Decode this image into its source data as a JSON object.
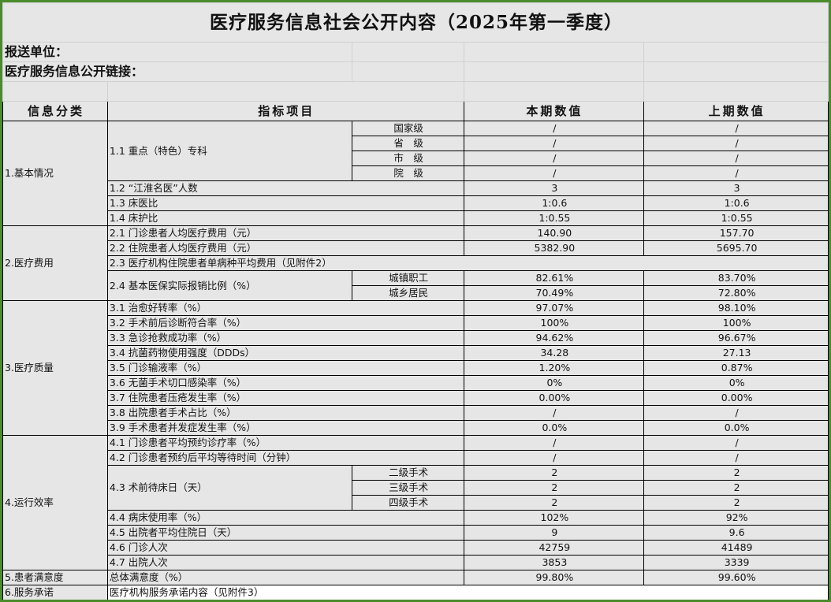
{
  "title": "医疗服务信息社会公开内容（2025年第一季度）",
  "meta": {
    "unit_label": "报送单位：",
    "link_label": "医疗服务信息公开链接："
  },
  "header": {
    "category": "信息分类",
    "item": "指标项目",
    "current": "本期数值",
    "previous": "上期数值"
  },
  "sections": [
    {
      "category": "1.基本情况",
      "rows": [
        {
          "item": "1.1 重点（特色）专科",
          "subs": [
            {
              "label": "国家级",
              "current": "/",
              "previous": "/"
            },
            {
              "label": "省　级",
              "current": "/",
              "previous": "/"
            },
            {
              "label": "市　级",
              "current": "/",
              "previous": "/"
            },
            {
              "label": "院　级",
              "current": "/",
              "previous": "/"
            }
          ]
        },
        {
          "item": "1.2 “江淮名医”人数",
          "current": "3",
          "previous": "3"
        },
        {
          "item": "1.3 床医比",
          "current": "1:0.6",
          "previous": "1:0.6"
        },
        {
          "item": "1.4 床护比",
          "current": "1:0.55",
          "previous": "1:0.55"
        }
      ]
    },
    {
      "category": "2.医疗费用",
      "rows": [
        {
          "item": "2.1 门诊患者人均医疗费用（元）",
          "current": "140.90",
          "previous": "157.70"
        },
        {
          "item": "2.2 住院患者人均医疗费用（元）",
          "current": "5382.90",
          "previous": "5695.70"
        },
        {
          "item": "2.3 医疗机构住院患者单病种平均费用（见附件2）",
          "span": true
        },
        {
          "item": "2.4 基本医保实际报销比例（%）",
          "subs": [
            {
              "label": "城镇职工",
              "current": "82.61%",
              "previous": "83.70%"
            },
            {
              "label": "城乡居民",
              "current": "70.49%",
              "previous": "72.80%"
            }
          ]
        }
      ]
    },
    {
      "category": "3.医疗质量",
      "rows": [
        {
          "item": "3.1 治愈好转率（%）",
          "current": "97.07%",
          "previous": "98.10%"
        },
        {
          "item": "3.2 手术前后诊断符合率（%）",
          "current": "100%",
          "previous": "100%"
        },
        {
          "item": "3.3 急诊抢救成功率（%）",
          "current": "94.62%",
          "previous": "96.67%"
        },
        {
          "item": "3.4 抗菌药物使用强度（DDDs）",
          "current": "34.28",
          "previous": "27.13"
        },
        {
          "item": "3.5 门诊输液率（%）",
          "current": "1.20%",
          "previous": "0.87%"
        },
        {
          "item": "3.6 无菌手术切口感染率（%）",
          "current": "0%",
          "previous": "0%"
        },
        {
          "item": "3.7 住院患者压疮发生率（%）",
          "current": "0.00%",
          "previous": "0.00%"
        },
        {
          "item": "3.8 出院患者手术占比（%）",
          "current": "/",
          "previous": "/"
        },
        {
          "item": "3.9 手术患者并发症发生率（%）",
          "current": "0.0%",
          "previous": "0.0%"
        }
      ]
    },
    {
      "category": "4.运行效率",
      "rows": [
        {
          "item": "4.1 门诊患者平均预约诊疗率（%）",
          "current": "/",
          "previous": "/"
        },
        {
          "item": "4.2 门诊患者预约后平均等待时间（分钟）",
          "current": "/",
          "previous": "/"
        },
        {
          "item": "4.3 术前待床日（天）",
          "subs": [
            {
              "label": "二级手术",
              "current": "2",
              "previous": "2"
            },
            {
              "label": "三级手术",
              "current": "2",
              "previous": "2"
            },
            {
              "label": "四级手术",
              "current": "2",
              "previous": "2"
            }
          ]
        },
        {
          "item": "4.4 病床使用率（%）",
          "current": "102%",
          "previous": "92%"
        },
        {
          "item": "4.5 出院者平均住院日（天）",
          "current": "9",
          "previous": "9.6"
        },
        {
          "item": "4.6 门诊人次",
          "current": "42759",
          "previous": "41489"
        },
        {
          "item": "4.7 出院人次",
          "current": "3853",
          "previous": "3339"
        }
      ]
    },
    {
      "category": "5.患者满意度",
      "rows": [
        {
          "item": "总体满意度（%）",
          "current": "99.80%",
          "previous": "99.60%"
        }
      ]
    },
    {
      "category": "6.服务承诺",
      "rows": [
        {
          "item": "医疗机构服务承诺内容（见附件3）",
          "span": true,
          "white": true
        }
      ]
    }
  ]
}
